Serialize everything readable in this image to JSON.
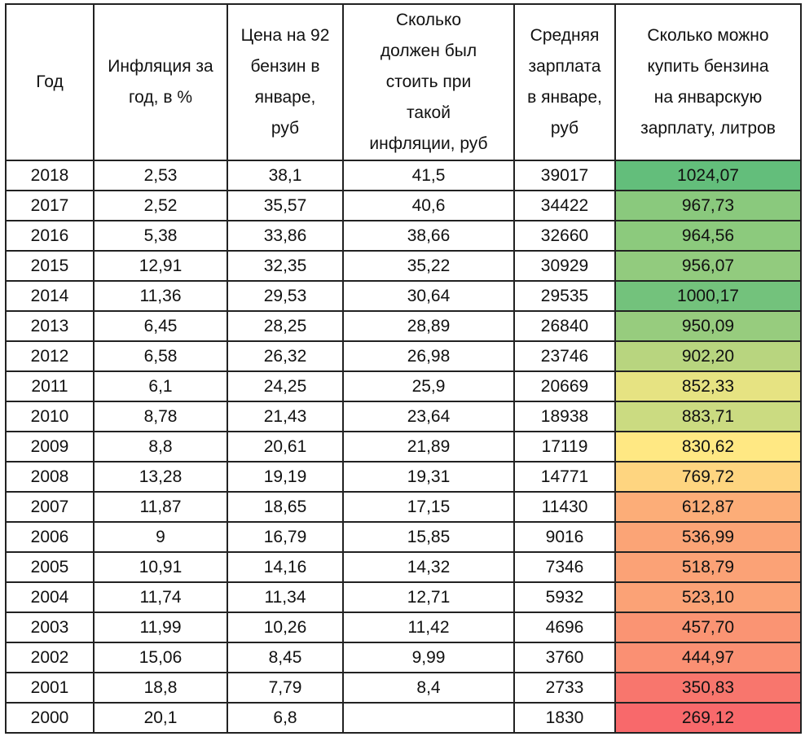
{
  "headers": {
    "year": "Год",
    "inflation": "Инфляция за\nгод, в %",
    "price": "Цена на 92\nбензин в\nянваре,\nруб",
    "adjusted": "Сколько\nдолжен был\nстоить при\nтакой\nинфляции, руб",
    "salary": "Средняя\nзарплата\nв январе,\nруб",
    "liters": "Сколько можно\nкупить бензина\nна январскую\nзарплату, литров"
  },
  "rows": [
    {
      "year": "2018",
      "inflation": "2,53",
      "price": "38,1",
      "adjusted": "41,5",
      "salary": "39017",
      "liters": "1024,07",
      "color": "#63be7b"
    },
    {
      "year": "2017",
      "inflation": "2,52",
      "price": "35,57",
      "adjusted": "40,6",
      "salary": "34422",
      "liters": "967,73",
      "color": "#8ac97d"
    },
    {
      "year": "2016",
      "inflation": "5,38",
      "price": "33,86",
      "adjusted": "38,66",
      "salary": "32660",
      "liters": "964,56",
      "color": "#8cca7d"
    },
    {
      "year": "2015",
      "inflation": "12,91",
      "price": "32,35",
      "adjusted": "35,22",
      "salary": "30929",
      "liters": "956,07",
      "color": "#92cb7e"
    },
    {
      "year": "2014",
      "inflation": "11,36",
      "price": "29,53",
      "adjusted": "30,64",
      "salary": "29535",
      "liters": "1000,17",
      "color": "#73c27c"
    },
    {
      "year": "2013",
      "inflation": "6,45",
      "price": "28,25",
      "adjusted": "28,89",
      "salary": "26840",
      "liters": "950,09",
      "color": "#97cc7e"
    },
    {
      "year": "2012",
      "inflation": "6,58",
      "price": "26,32",
      "adjusted": "26,98",
      "salary": "23746",
      "liters": "902,20",
      "color": "#b8d57f"
    },
    {
      "year": "2011",
      "inflation": "6,1",
      "price": "24,25",
      "adjusted": "25,9",
      "salary": "20669",
      "liters": "852,33",
      "color": "#e6e382"
    },
    {
      "year": "2010",
      "inflation": "8,78",
      "price": "21,43",
      "adjusted": "23,64",
      "salary": "18938",
      "liters": "883,71",
      "color": "#cbdb81"
    },
    {
      "year": "2009",
      "inflation": "8,8",
      "price": "20,61",
      "adjusted": "21,89",
      "salary": "17119",
      "liters": "830,62",
      "color": "#ffe883"
    },
    {
      "year": "2008",
      "inflation": "13,28",
      "price": "19,19",
      "adjusted": "19,31",
      "salary": "14771",
      "liters": "769,72",
      "color": "#fed580"
    },
    {
      "year": "2007",
      "inflation": "11,87",
      "price": "18,65",
      "adjusted": "17,15",
      "salary": "11430",
      "liters": "612,87",
      "color": "#fcad78"
    },
    {
      "year": "2006",
      "inflation": "9",
      "price": "16,79",
      "adjusted": "15,85",
      "salary": "9016",
      "liters": "536,99",
      "color": "#fba476"
    },
    {
      "year": "2005",
      "inflation": "10,91",
      "price": "14,16",
      "adjusted": "14,32",
      "salary": "7346",
      "liters": "518,79",
      "color": "#fba276"
    },
    {
      "year": "2004",
      "inflation": "11,74",
      "price": "11,34",
      "adjusted": "12,71",
      "salary": "5932",
      "liters": "523,10",
      "color": "#fba276"
    },
    {
      "year": "2003",
      "inflation": "11,99",
      "price": "10,26",
      "adjusted": "11,42",
      "salary": "4696",
      "liters": "457,70",
      "color": "#fa9473"
    },
    {
      "year": "2002",
      "inflation": "15,06",
      "price": "8,45",
      "adjusted": "9,99",
      "salary": "3760",
      "liters": "444,97",
      "color": "#fa9073"
    },
    {
      "year": "2001",
      "inflation": "18,8",
      "price": "7,79",
      "adjusted": "8,4",
      "salary": "2733",
      "liters": "350,83",
      "color": "#f8766d"
    },
    {
      "year": "2000",
      "inflation": "20,1",
      "price": "6,8",
      "adjusted": "",
      "salary": "1830",
      "liters": "269,12",
      "color": "#f8696b"
    }
  ]
}
